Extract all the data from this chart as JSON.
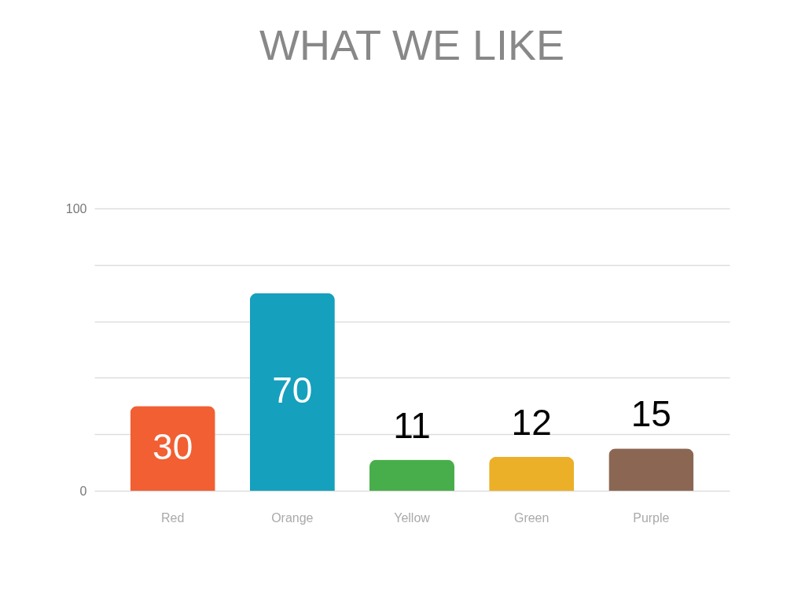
{
  "chart_data": {
    "type": "bar",
    "title": "WHAT WE LIKE",
    "categories": [
      "Red",
      "Orange",
      "Yellow",
      "Green",
      "Purple"
    ],
    "values": [
      30,
      70,
      11,
      12,
      15
    ],
    "colors": [
      "#f15f33",
      "#15a0bd",
      "#48ae4b",
      "#ebb027",
      "#8b6753"
    ],
    "ylim": [
      0,
      100
    ],
    "yticks": [
      0,
      {
        "value": 20,
        "label": null
      },
      {
        "value": 40,
        "label": null
      },
      {
        "value": 60,
        "label": null
      },
      {
        "value": 80,
        "label": null
      },
      100
    ],
    "grid": "y",
    "data_labels": true
  }
}
